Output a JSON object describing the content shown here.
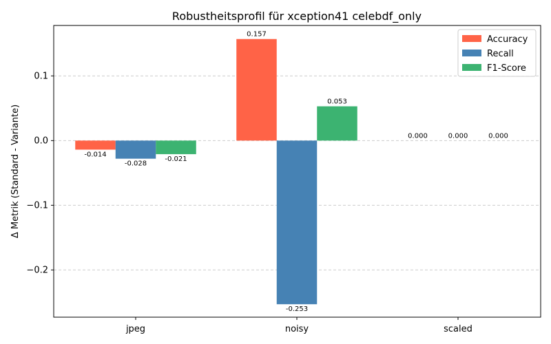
{
  "chart_data": {
    "type": "bar",
    "title": "Robustheitsprofil für xception41 celebdf_only",
    "xlabel": "",
    "ylabel": "Δ Metrik (Standard - Variante)",
    "categories": [
      "jpeg",
      "noisy",
      "scaled"
    ],
    "series": [
      {
        "name": "Accuracy",
        "color": "#ff6347",
        "values": [
          -0.014,
          0.157,
          0.0
        ],
        "labels": [
          "-0.014",
          "0.157",
          "0.000"
        ]
      },
      {
        "name": "Recall",
        "color": "#4682b4",
        "values": [
          -0.028,
          -0.253,
          0.0
        ],
        "labels": [
          "-0.028",
          "-0.253",
          "0.000"
        ]
      },
      {
        "name": "F1-Score",
        "color": "#3cb371",
        "values": [
          -0.021,
          0.053,
          0.0
        ],
        "labels": [
          "-0.021",
          "0.053",
          "0.000"
        ]
      }
    ],
    "ylim": [
      -0.273,
      0.178
    ],
    "yticks": [
      -0.2,
      -0.1,
      0.0,
      0.1
    ],
    "ytick_labels": [
      "−0.2",
      "−0.1",
      "0.0",
      "0.1"
    ],
    "grid": "y-dashed",
    "legend_position": "top-right"
  }
}
